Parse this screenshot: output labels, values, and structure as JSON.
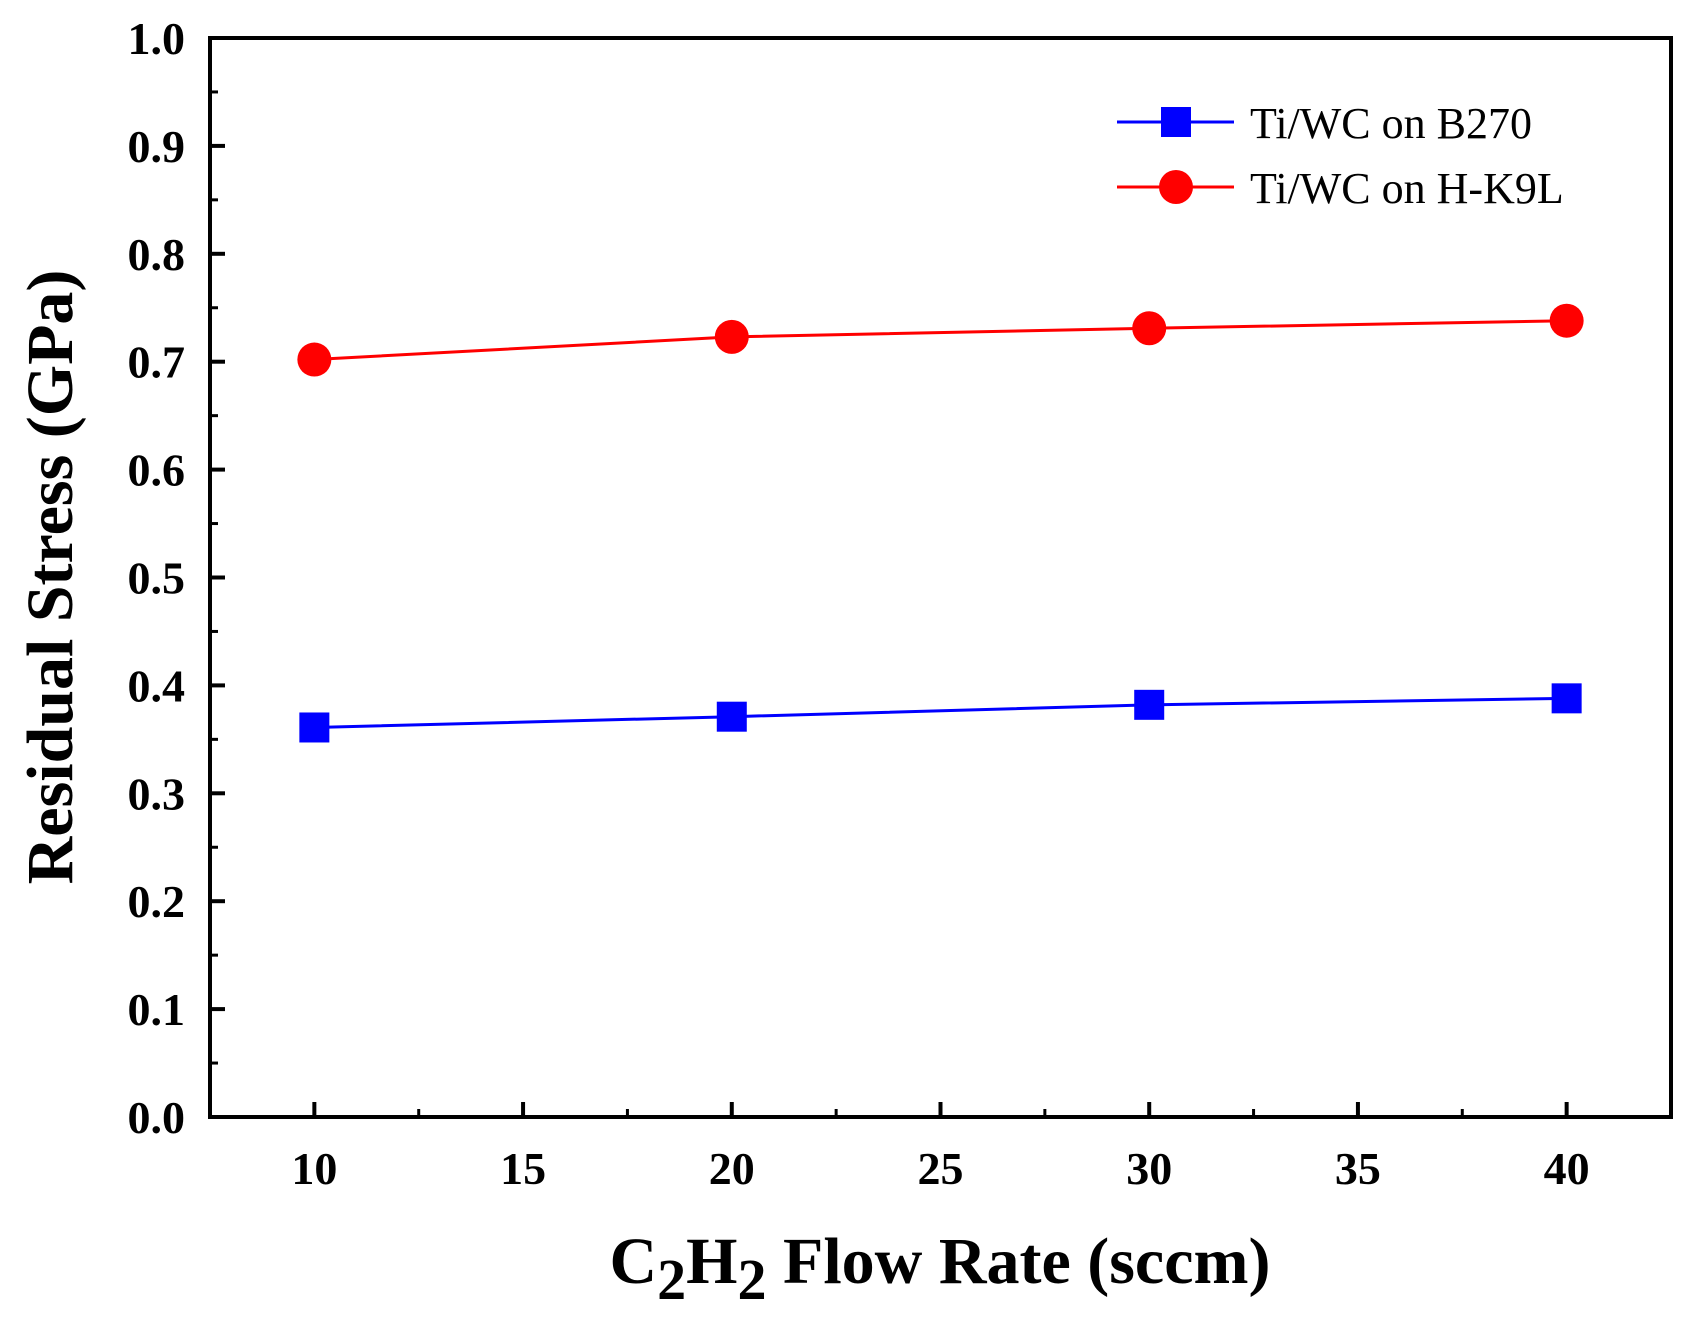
{
  "chart_data": {
    "type": "line",
    "x": [
      10,
      20,
      30,
      40
    ],
    "series": [
      {
        "name": "Ti/WC on B270",
        "values": [
          0.361,
          0.371,
          0.382,
          0.388
        ],
        "color": "#0000ff",
        "marker": "square"
      },
      {
        "name": "Ti/WC on H-K9L",
        "values": [
          0.702,
          0.723,
          0.731,
          0.738
        ],
        "color": "#ff0000",
        "marker": "circle"
      }
    ],
    "xlabel_parts": {
      "pre": "C",
      "sub1": "2",
      "mid": "H",
      "sub2": "2",
      "post": " Flow Rate (sccm)"
    },
    "ylabel": "Residual Stress (GPa)",
    "xlim": [
      7.5,
      42.5
    ],
    "ylim": [
      0.0,
      1.0
    ],
    "xticks": [
      "10",
      "15",
      "20",
      "25",
      "30",
      "35",
      "40"
    ],
    "xtick_values": [
      10,
      15,
      20,
      25,
      30,
      35,
      40
    ],
    "yticks": [
      "0.0",
      "0.1",
      "0.2",
      "0.3",
      "0.4",
      "0.5",
      "0.6",
      "0.7",
      "0.8",
      "0.9",
      "1.0"
    ],
    "ytick_values": [
      0.0,
      0.1,
      0.2,
      0.3,
      0.4,
      0.5,
      0.6,
      0.7,
      0.8,
      0.9,
      1.0
    ],
    "legend_position": "top-right",
    "grid": false
  }
}
